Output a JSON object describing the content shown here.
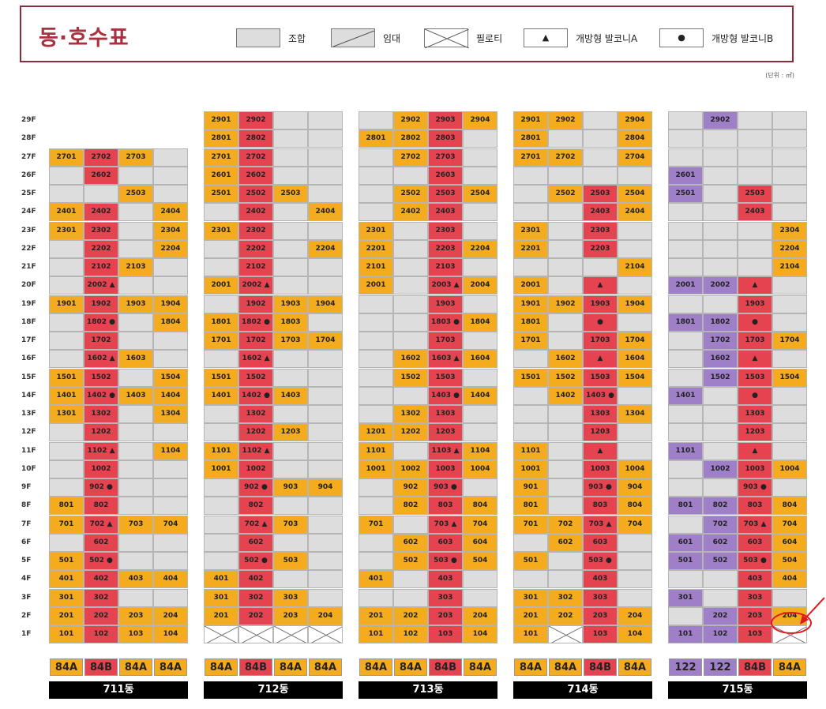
{
  "header": {
    "title": "동·호수표",
    "legend": [
      {
        "key": "johap",
        "label": "조합"
      },
      {
        "key": "imdae",
        "label": "임대"
      },
      {
        "key": "pilotis",
        "label": "필로티"
      },
      {
        "key": "balconyA",
        "label": "개방형 발코니A",
        "symbol": "▲"
      },
      {
        "key": "balconyB",
        "label": "개방형 발코니B",
        "symbol": "●"
      }
    ],
    "unit": "(단위 : ㎡)"
  },
  "colors": {
    "orange": "#f5ab1e",
    "red": "#e54350",
    "purple": "#9f7fc8",
    "gray": "#dddddd",
    "frame": "#8b2c3a",
    "title": "#a8323f"
  },
  "floors": [
    "29F",
    "28F",
    "27F",
    "26F",
    "25F",
    "24F",
    "23F",
    "22F",
    "21F",
    "20F",
    "19F",
    "18F",
    "17F",
    "16F",
    "15F",
    "14F",
    "13F",
    "12F",
    "11F",
    "10F",
    "9F",
    "8F",
    "7F",
    "6F",
    "5F",
    "4F",
    "3F",
    "2F",
    "1F"
  ],
  "buildings": [
    {
      "name": "711동",
      "types": [
        {
          "label": "84A",
          "color": "orange"
        },
        {
          "label": "84B",
          "color": "red"
        },
        {
          "label": "84A",
          "color": "orange"
        },
        {
          "label": "84A",
          "color": "orange"
        }
      ],
      "rows": [
        [
          null,
          null,
          null,
          null
        ],
        [
          null,
          null,
          null,
          null
        ],
        [
          "2701",
          "2702",
          "2703",
          ""
        ],
        [
          "",
          "2602",
          "",
          ""
        ],
        [
          "",
          "",
          "2503",
          ""
        ],
        [
          "2401",
          "2402",
          "",
          "2404"
        ],
        [
          "2301",
          "2302",
          "",
          "2304"
        ],
        [
          "",
          "2202",
          "",
          "2204"
        ],
        [
          "",
          "2102",
          "2103",
          ""
        ],
        [
          "",
          "2002 ▲",
          "",
          ""
        ],
        [
          "1901",
          "1902",
          "1903",
          "1904"
        ],
        [
          "",
          "1802 ●",
          "",
          "1804"
        ],
        [
          "",
          "1702",
          "",
          ""
        ],
        [
          "",
          "1602 ▲",
          "1603",
          ""
        ],
        [
          "1501",
          "1502",
          "",
          "1504"
        ],
        [
          "1401",
          "1402 ●",
          "1403",
          "1404"
        ],
        [
          "1301",
          "1302",
          "",
          "1304"
        ],
        [
          "",
          "1202",
          "",
          ""
        ],
        [
          "",
          "1102 ▲",
          "",
          "1104"
        ],
        [
          "",
          "1002",
          "",
          ""
        ],
        [
          "",
          "902 ●",
          "",
          ""
        ],
        [
          "801",
          "802",
          "",
          ""
        ],
        [
          "701",
          "702 ▲",
          "703",
          "704"
        ],
        [
          "",
          "602",
          "",
          ""
        ],
        [
          "501",
          "502 ●",
          "",
          ""
        ],
        [
          "401",
          "402",
          "403",
          "404"
        ],
        [
          "301",
          "302",
          "",
          ""
        ],
        [
          "201",
          "202",
          "203",
          "204"
        ],
        [
          "101",
          "102",
          "103",
          "104"
        ]
      ]
    },
    {
      "name": "712동",
      "types": [
        {
          "label": "84A",
          "color": "orange"
        },
        {
          "label": "84B",
          "color": "red"
        },
        {
          "label": "84A",
          "color": "orange"
        },
        {
          "label": "84A",
          "color": "orange"
        }
      ],
      "rows": [
        [
          "2901",
          "2902",
          "",
          ""
        ],
        [
          "2801",
          "2802",
          "",
          ""
        ],
        [
          "2701",
          "2702",
          "",
          ""
        ],
        [
          "2601",
          "2602",
          "",
          ""
        ],
        [
          "2501",
          "2502",
          "2503",
          ""
        ],
        [
          "",
          "2402",
          "",
          "2404"
        ],
        [
          "2301",
          "2302",
          "",
          ""
        ],
        [
          "",
          "2202",
          "",
          "2204"
        ],
        [
          "",
          "2102",
          "",
          ""
        ],
        [
          "2001",
          "2002 ▲",
          "",
          ""
        ],
        [
          "",
          "1902",
          "1903",
          "1904"
        ],
        [
          "1801",
          "1802 ●",
          "1803",
          ""
        ],
        [
          "1701",
          "1702",
          "1703",
          "1704"
        ],
        [
          "",
          "1602 ▲",
          "",
          ""
        ],
        [
          "1501",
          "1502",
          "",
          ""
        ],
        [
          "1401",
          "1402 ●",
          "1403",
          ""
        ],
        [
          "",
          "1302",
          "",
          ""
        ],
        [
          "",
          "1202",
          "1203",
          ""
        ],
        [
          "1101",
          "1102 ▲",
          "",
          ""
        ],
        [
          "1001",
          "1002",
          "",
          ""
        ],
        [
          "",
          "902 ●",
          "903",
          "904"
        ],
        [
          "",
          "802",
          "",
          ""
        ],
        [
          "",
          "702 ▲",
          "703",
          ""
        ],
        [
          "",
          "602",
          "",
          ""
        ],
        [
          "",
          "502 ●",
          "503",
          ""
        ],
        [
          "401",
          "402",
          "",
          ""
        ],
        [
          "301",
          "302",
          "303",
          ""
        ],
        [
          "201",
          "202",
          "203",
          "204"
        ],
        [
          "X",
          "X",
          "X",
          "X"
        ]
      ]
    },
    {
      "name": "713동",
      "types": [
        {
          "label": "84A",
          "color": "orange"
        },
        {
          "label": "84A",
          "color": "orange"
        },
        {
          "label": "84B",
          "color": "red"
        },
        {
          "label": "84A",
          "color": "orange"
        }
      ],
      "rows": [
        [
          "",
          "2902",
          "2903",
          "2904"
        ],
        [
          "2801",
          "2802",
          "2803",
          ""
        ],
        [
          "",
          "2702",
          "2703",
          ""
        ],
        [
          "",
          "",
          "2603",
          ""
        ],
        [
          "",
          "2502",
          "2503",
          "2504"
        ],
        [
          "",
          "2402",
          "2403",
          ""
        ],
        [
          "2301",
          "",
          "2303",
          ""
        ],
        [
          "2201",
          "",
          "2203",
          "2204"
        ],
        [
          "2101",
          "",
          "2103",
          ""
        ],
        [
          "2001",
          "",
          "2003 ▲",
          "2004"
        ],
        [
          "",
          "",
          "1903",
          ""
        ],
        [
          "",
          "",
          "1803 ●",
          "1804"
        ],
        [
          "",
          "",
          "1703",
          ""
        ],
        [
          "",
          "1602",
          "1603 ▲",
          "1604"
        ],
        [
          "",
          "1502",
          "1503",
          ""
        ],
        [
          "",
          "",
          "1403 ●",
          "1404"
        ],
        [
          "",
          "1302",
          "1303",
          ""
        ],
        [
          "1201",
          "1202",
          "1203",
          ""
        ],
        [
          "1101",
          "",
          "1103 ▲",
          "1104"
        ],
        [
          "1001",
          "1002",
          "1003",
          "1004"
        ],
        [
          "",
          "902",
          "903 ●",
          ""
        ],
        [
          "",
          "802",
          "803",
          "804"
        ],
        [
          "701",
          "",
          "703 ▲",
          "704"
        ],
        [
          "",
          "602",
          "603",
          "604"
        ],
        [
          "",
          "502",
          "503 ●",
          "504"
        ],
        [
          "401",
          "",
          "403",
          ""
        ],
        [
          "",
          "",
          "303",
          ""
        ],
        [
          "201",
          "202",
          "203",
          "204"
        ],
        [
          "101",
          "102",
          "103",
          "104"
        ]
      ]
    },
    {
      "name": "714동",
      "types": [
        {
          "label": "84A",
          "color": "orange"
        },
        {
          "label": "84A",
          "color": "orange"
        },
        {
          "label": "84B",
          "color": "red"
        },
        {
          "label": "84A",
          "color": "orange"
        }
      ],
      "rows": [
        [
          "2901",
          "2902",
          "",
          "2904"
        ],
        [
          "2801",
          "",
          "",
          "2804"
        ],
        [
          "2701",
          "2702",
          "",
          "2704"
        ],
        [
          "",
          "",
          "",
          ""
        ],
        [
          "",
          "2502",
          "2503",
          "2504"
        ],
        [
          "",
          "",
          "2403",
          "2404"
        ],
        [
          "2301",
          "",
          "2303",
          ""
        ],
        [
          "2201",
          "",
          "2203",
          ""
        ],
        [
          "",
          "",
          "",
          "2104"
        ],
        [
          "2001",
          "",
          "▲",
          ""
        ],
        [
          "1901",
          "1902",
          "1903",
          "1904"
        ],
        [
          "1801",
          "",
          "●",
          ""
        ],
        [
          "1701",
          "",
          "1703",
          "1704"
        ],
        [
          "",
          "1602",
          "▲",
          "1604"
        ],
        [
          "1501",
          "1502",
          "1503",
          "1504"
        ],
        [
          "",
          "1402",
          "1403 ●",
          ""
        ],
        [
          "",
          "",
          "1303",
          "1304"
        ],
        [
          "",
          "",
          "1203",
          ""
        ],
        [
          "1101",
          "",
          "▲",
          ""
        ],
        [
          "1001",
          "",
          "1003",
          "1004"
        ],
        [
          "901",
          "",
          "903 ●",
          "904"
        ],
        [
          "801",
          "",
          "803",
          "804"
        ],
        [
          "701",
          "702",
          "703 ▲",
          "704"
        ],
        [
          "",
          "602",
          "603",
          ""
        ],
        [
          "501",
          "",
          "503 ●",
          ""
        ],
        [
          "",
          "",
          "403",
          ""
        ],
        [
          "301",
          "302",
          "303",
          ""
        ],
        [
          "201",
          "202",
          "203",
          "204"
        ],
        [
          "101",
          "X",
          "103",
          "104"
        ]
      ]
    },
    {
      "name": "715동",
      "types": [
        {
          "label": "122",
          "color": "purple"
        },
        {
          "label": "122",
          "color": "purple"
        },
        {
          "label": "84B",
          "color": "red"
        },
        {
          "label": "84A",
          "color": "orange"
        }
      ],
      "rows": [
        [
          "",
          "2902",
          "",
          ""
        ],
        [
          "",
          "",
          "",
          ""
        ],
        [
          "",
          "",
          "",
          ""
        ],
        [
          "2601",
          "",
          "",
          ""
        ],
        [
          "2501",
          "",
          "2503",
          ""
        ],
        [
          "",
          "",
          "2403",
          ""
        ],
        [
          "",
          "",
          "",
          "2304"
        ],
        [
          "",
          "",
          "",
          "2204"
        ],
        [
          "",
          "",
          "",
          "2104"
        ],
        [
          "2001",
          "2002",
          "▲",
          ""
        ],
        [
          "",
          "",
          "1903",
          ""
        ],
        [
          "1801",
          "1802",
          "●",
          ""
        ],
        [
          "",
          "1702",
          "1703",
          "1704"
        ],
        [
          "",
          "1602",
          "▲",
          ""
        ],
        [
          "",
          "1502",
          "1503",
          "1504"
        ],
        [
          "1401",
          "",
          "●",
          ""
        ],
        [
          "",
          "",
          "1303",
          ""
        ],
        [
          "",
          "",
          "1203",
          ""
        ],
        [
          "1101",
          "",
          "▲",
          ""
        ],
        [
          "",
          "1002",
          "1003",
          "1004"
        ],
        [
          "",
          "",
          "903 ●",
          ""
        ],
        [
          "801",
          "802",
          "803",
          "804"
        ],
        [
          "",
          "702",
          "703 ▲",
          "704"
        ],
        [
          "601",
          "602",
          "603",
          "604"
        ],
        [
          "501",
          "502",
          "503 ●",
          "504"
        ],
        [
          "",
          "",
          "403",
          "404"
        ],
        [
          "301",
          "",
          "303",
          ""
        ],
        [
          "",
          "202",
          "203",
          "204"
        ],
        [
          "101",
          "102",
          "103",
          "X"
        ]
      ]
    }
  ]
}
